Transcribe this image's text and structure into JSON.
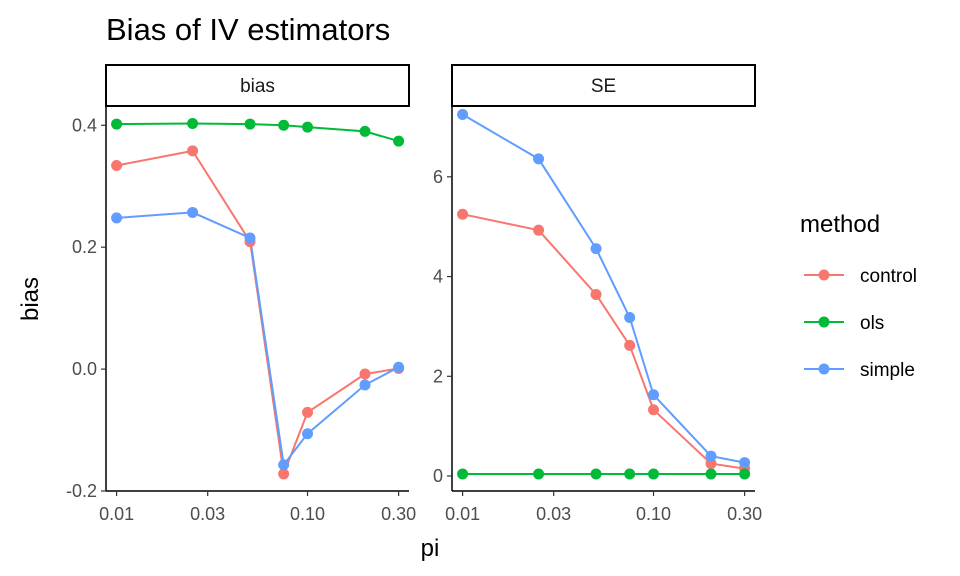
{
  "chart_data": {
    "type": "line",
    "title": "Bias of IV estimators",
    "xlabel": "pi",
    "ylabel": "bias",
    "x_scale": "log10",
    "x": [
      0.01,
      0.025,
      0.05,
      0.075,
      0.1,
      0.2,
      0.3
    ],
    "x_ticks": [
      0.01,
      0.03,
      0.1,
      0.3
    ],
    "x_tick_labels": [
      "0.01",
      "0.03",
      "0.10",
      "0.30"
    ],
    "xlim": [
      0.0088,
      0.34
    ],
    "legend": {
      "title": "method",
      "placement": "right",
      "entries": [
        "control",
        "ols",
        "simple"
      ]
    },
    "colors": {
      "control": "#F8766D",
      "ols": "#00BA38",
      "simple": "#619CFF"
    },
    "grid": false,
    "facets": [
      {
        "strip": "bias",
        "ylim": [
          -0.2,
          0.43
        ],
        "y_ticks": [
          -0.2,
          0.0,
          0.2,
          0.4
        ],
        "y_tick_labels": [
          "-0.2",
          "0.0",
          "0.2",
          "0.4"
        ],
        "series": [
          {
            "name": "control",
            "values": [
              0.334,
              0.358,
              0.209,
              -0.172,
              -0.071,
              -0.008,
              0.001
            ]
          },
          {
            "name": "ols",
            "values": [
              0.402,
              0.403,
              0.402,
              0.4,
              0.397,
              0.39,
              0.374
            ]
          },
          {
            "name": "simple",
            "values": [
              0.248,
              0.257,
              0.215,
              -0.157,
              -0.106,
              -0.026,
              0.003
            ]
          }
        ]
      },
      {
        "strip": "SE",
        "ylim": [
          -0.3,
          7.4
        ],
        "y_ticks": [
          0,
          2,
          4,
          6
        ],
        "y_tick_labels": [
          "0",
          "2",
          "4",
          "6"
        ],
        "series": [
          {
            "name": "control",
            "values": [
              5.25,
              4.93,
              3.64,
              2.62,
              1.33,
              0.25,
              0.15
            ]
          },
          {
            "name": "ols",
            "values": [
              0.04,
              0.04,
              0.04,
              0.04,
              0.04,
              0.04,
              0.04
            ]
          },
          {
            "name": "simple",
            "values": [
              7.25,
              6.36,
              4.56,
              3.18,
              1.63,
              0.4,
              0.27
            ]
          }
        ]
      }
    ]
  }
}
